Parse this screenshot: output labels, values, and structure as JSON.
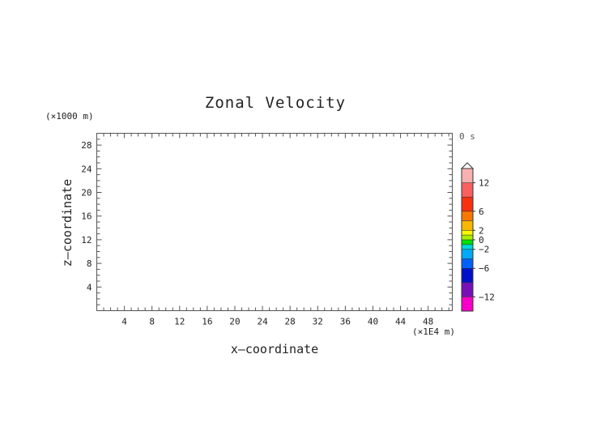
{
  "chart_data": {
    "type": "heatmap",
    "title": "Zonal Velocity",
    "xlabel": "x—coordinate",
    "ylabel": "z—coordinate",
    "x_unit_label": "(×1E4 m)",
    "y_unit_label": "(×1000 m)",
    "time_label": "0 s",
    "xlim": [
      0,
      51.5
    ],
    "ylim": [
      0,
      30
    ],
    "x_ticks": [
      "4",
      "8",
      "12",
      "16",
      "20",
      "24",
      "28",
      "32",
      "36",
      "40",
      "44",
      "48"
    ],
    "y_ticks": [
      "4",
      "8",
      "12",
      "16",
      "20",
      "24",
      "28"
    ],
    "grid": false,
    "values": [],
    "colorbar": {
      "range": [
        -15,
        15
      ],
      "extend": "max",
      "tick_labels": [
        "12",
        "6",
        "2",
        "0",
        "−2",
        "−6",
        "−12"
      ],
      "tick_values": [
        12,
        6,
        2,
        0,
        -2,
        -6,
        -12
      ],
      "levels": [
        {
          "from": 12,
          "to": 15,
          "color": "#f8b0b0"
        },
        {
          "from": 9,
          "to": 12,
          "color": "#f86060"
        },
        {
          "from": 6,
          "to": 9,
          "color": "#f83010"
        },
        {
          "from": 4,
          "to": 6,
          "color": "#f87800"
        },
        {
          "from": 2,
          "to": 4,
          "color": "#f8b800"
        },
        {
          "from": 1,
          "to": 2,
          "color": "#f8f800"
        },
        {
          "from": 0,
          "to": 1,
          "color": "#a8f000"
        },
        {
          "from": -1,
          "to": 0,
          "color": "#00e000"
        },
        {
          "from": -2,
          "to": -1,
          "color": "#00d8d8"
        },
        {
          "from": -4,
          "to": -2,
          "color": "#00a8f8"
        },
        {
          "from": -6,
          "to": -4,
          "color": "#0060f8"
        },
        {
          "from": -9,
          "to": -6,
          "color": "#0010c8"
        },
        {
          "from": -12,
          "to": -9,
          "color": "#7810b8"
        },
        {
          "from": -15,
          "to": -12,
          "color": "#f800c8"
        }
      ]
    }
  }
}
